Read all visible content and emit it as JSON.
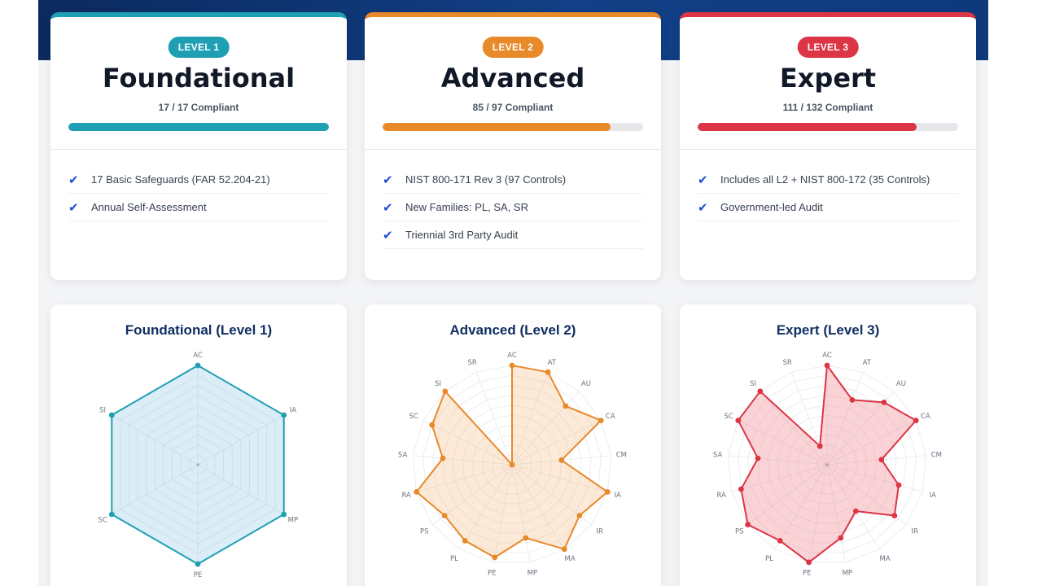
{
  "colors": {
    "level1": "#1f9fb4",
    "level2": "#e8892a",
    "level3": "#dc3545",
    "check": "#1d4ed8"
  },
  "levels": [
    {
      "badge": "LEVEL 1",
      "title": "Foundational",
      "compliance": "17 / 17 Compliant",
      "progress": 1.0,
      "features": [
        "17 Basic Safeguards (FAR 52.204-21)",
        "Annual Self-Assessment"
      ]
    },
    {
      "badge": "LEVEL 2",
      "title": "Advanced",
      "compliance": "85 / 97 Compliant",
      "progress": 0.876,
      "features": [
        "NIST 800-171 Rev 3 (97 Controls)",
        "New Families: PL, SA, SR",
        "Triennial 3rd Party Audit"
      ]
    },
    {
      "badge": "LEVEL 3",
      "title": "Expert",
      "compliance": "111 / 132 Compliant",
      "progress": 0.841,
      "features": [
        "Includes all L2 + NIST 800-172 (35 Controls)",
        "Government-led Audit"
      ]
    }
  ],
  "chart_data": [
    {
      "type": "radar",
      "title": "Foundational (Level 1)",
      "axes": [
        "AC",
        "IA",
        "MP",
        "PE",
        "SC",
        "SI"
      ],
      "values": [
        100,
        100,
        100,
        100,
        100,
        100
      ],
      "range": [
        0,
        100
      ],
      "grid": true
    },
    {
      "type": "radar",
      "title": "Advanced (Level 2)",
      "axes": [
        "AC",
        "AT",
        "AU",
        "CA",
        "CM",
        "IA",
        "IR",
        "MA",
        "MP",
        "PE",
        "PL",
        "PS",
        "RA",
        "SA",
        "SC",
        "SI",
        "SR"
      ],
      "values": [
        100,
        100,
        80,
        100,
        50,
        100,
        85,
        100,
        75,
        95,
        90,
        85,
        100,
        70,
        90,
        100,
        0
      ],
      "range": [
        0,
        100
      ],
      "grid": true
    },
    {
      "type": "radar",
      "title": "Expert (Level 3)",
      "axes": [
        "AC",
        "AT",
        "AU",
        "CA",
        "CM",
        "IA",
        "IR",
        "MA",
        "MP",
        "PE",
        "PL",
        "PS",
        "RA",
        "SA",
        "SC",
        "SI",
        "SR"
      ],
      "values": [
        100,
        70,
        85,
        100,
        55,
        75,
        85,
        55,
        75,
        100,
        90,
        100,
        90,
        70,
        100,
        100,
        20
      ],
      "range": [
        0,
        100
      ],
      "grid": true
    }
  ]
}
